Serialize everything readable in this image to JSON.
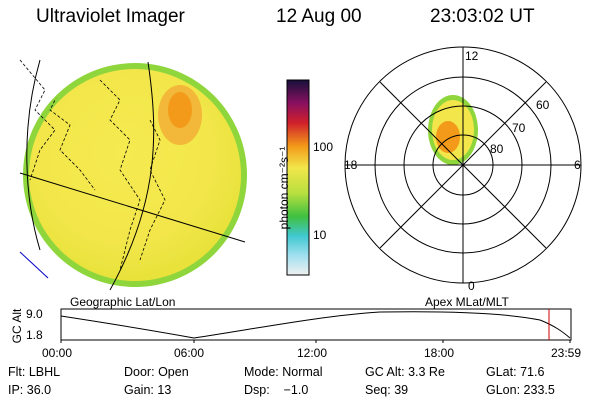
{
  "header": {
    "instrument": "Ultraviolet Imager",
    "date": "12 Aug 00",
    "time": "23:03:02 UT"
  },
  "colorbar": {
    "unit_label": "photon cm⁻²s⁻¹",
    "ticks": [
      "100",
      "10"
    ]
  },
  "polar_plot": {
    "mlt_labels": [
      "12",
      "18",
      "6",
      "0"
    ],
    "lat_labels": [
      "60",
      "70",
      "80"
    ]
  },
  "altitude_plot": {
    "left_title": "Geographic Lat/Lon",
    "right_title": "Apex MLat/MLT",
    "y_axis_label": "GC Alt",
    "y_ticks": [
      "9.0",
      "1.8"
    ],
    "x_ticks": [
      "00:00",
      "06:00",
      "12:00",
      "18:00",
      "23:59"
    ],
    "current_time_marker": "23:03"
  },
  "info": {
    "filter_label": "Flt:",
    "filter_value": "LBHL",
    "ip_label": "IP:",
    "ip_value": "36.0",
    "door_label": "Door:",
    "door_value": "Open",
    "gain_label": "Gain:",
    "gain_value": "13",
    "mode_label": "Mode:",
    "mode_value": "Normal",
    "dsp_label": "Dsp:",
    "dsp_value": "−1.0",
    "gcalt_label": "GC Alt:",
    "gcalt_value": "3.3 Re",
    "seq_label": "Seq:",
    "seq_value": "39",
    "glat_label": "GLat:",
    "glat_value": "71.6",
    "glon_label": "GLon:",
    "glon_value": "233.5"
  },
  "colors": {
    "background": "#ffffff",
    "imager_fill": "#f2e64a",
    "imager_edge": "#8fd63c",
    "hotspot": "#f39a1a",
    "time_marker": "#cc0000",
    "limb_line": "#0000cc"
  }
}
